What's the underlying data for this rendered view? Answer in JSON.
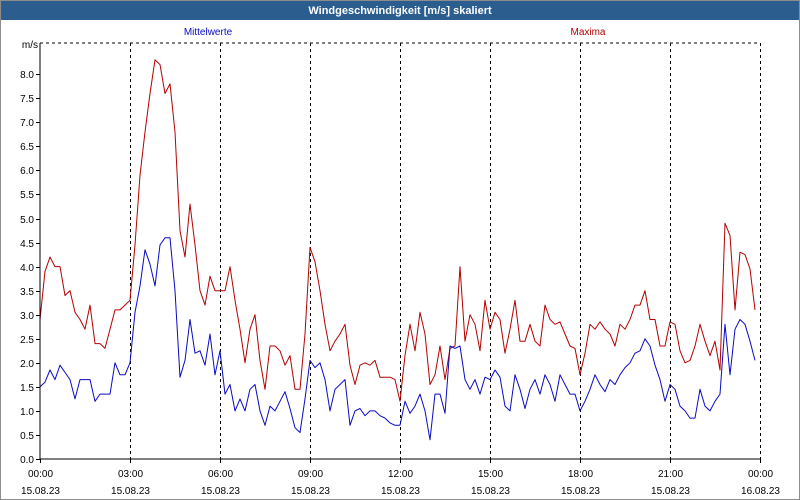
{
  "style": {
    "title_bar_color": "#2b5d8f"
  },
  "chart_data": {
    "type": "line",
    "title": "Windgeschwindigkeit [m/s] skaliert",
    "ylabel": "m/s",
    "ylim": [
      0,
      8.65
    ],
    "yticks": [
      "0.0",
      "0.5",
      "1.0",
      "1.5",
      "2.0",
      "2.5",
      "3.0",
      "3.5",
      "4.0",
      "4.5",
      "5.0",
      "5.5",
      "6.0",
      "6.5",
      "7.0",
      "7.5",
      "8.0"
    ],
    "xticks": [
      {
        "time": "00:00",
        "date": "15.08.23"
      },
      {
        "time": "03:00",
        "date": "15.08.23"
      },
      {
        "time": "06:00",
        "date": "15.08.23"
      },
      {
        "time": "09:00",
        "date": "15.08.23"
      },
      {
        "time": "12:00",
        "date": "15.08.23"
      },
      {
        "time": "15:00",
        "date": "15.08.23"
      },
      {
        "time": "18:00",
        "date": "15.08.23"
      },
      {
        "time": "21:00",
        "date": "15.08.23"
      },
      {
        "time": "00:00",
        "date": "16.08.23"
      }
    ],
    "grid": {
      "x": true,
      "y": false
    },
    "legend": "top",
    "x": [
      "00:00",
      "00:10",
      "00:20",
      "00:30",
      "00:40",
      "00:50",
      "01:00",
      "01:10",
      "01:20",
      "01:30",
      "01:40",
      "01:50",
      "02:00",
      "02:10",
      "02:20",
      "02:30",
      "02:40",
      "02:50",
      "03:00",
      "03:10",
      "03:20",
      "03:30",
      "03:40",
      "03:50",
      "04:00",
      "04:10",
      "04:20",
      "04:30",
      "04:40",
      "04:50",
      "05:00",
      "05:10",
      "05:20",
      "05:30",
      "05:40",
      "05:50",
      "06:00",
      "06:10",
      "06:20",
      "06:30",
      "06:40",
      "06:50",
      "07:00",
      "07:10",
      "07:20",
      "07:30",
      "07:40",
      "07:50",
      "08:00",
      "08:10",
      "08:20",
      "08:30",
      "08:40",
      "08:50",
      "09:00",
      "09:10",
      "09:20",
      "09:30",
      "09:40",
      "09:50",
      "10:00",
      "10:10",
      "10:20",
      "10:30",
      "10:40",
      "10:50",
      "11:00",
      "11:10",
      "11:20",
      "11:30",
      "11:40",
      "11:50",
      "12:00",
      "12:10",
      "12:20",
      "12:30",
      "12:40",
      "12:50",
      "13:00",
      "13:10",
      "13:20",
      "13:30",
      "13:40",
      "13:50",
      "14:00",
      "14:10",
      "14:20",
      "14:30",
      "14:40",
      "14:50",
      "15:00",
      "15:10",
      "15:20",
      "15:30",
      "15:40",
      "15:50",
      "16:00",
      "16:10",
      "16:20",
      "16:30",
      "16:40",
      "16:50",
      "17:00",
      "17:10",
      "17:20",
      "17:30",
      "17:40",
      "17:50",
      "18:00",
      "18:10",
      "18:20",
      "18:30",
      "18:40",
      "18:50",
      "19:00",
      "19:10",
      "19:20",
      "19:30",
      "19:40",
      "19:50",
      "20:00",
      "20:10",
      "20:20",
      "20:30",
      "20:40",
      "20:50",
      "21:00",
      "21:10",
      "21:20",
      "21:30",
      "21:40",
      "21:50",
      "22:00",
      "22:10",
      "22:20",
      "22:30",
      "22:40",
      "22:50",
      "23:00",
      "23:10",
      "23:20",
      "23:30",
      "23:40",
      "23:50"
    ],
    "series": [
      {
        "name": "Mittelwerte",
        "color": "#0a0ac4",
        "values": [
          1.5,
          1.6,
          1.85,
          1.65,
          1.95,
          1.8,
          1.65,
          1.25,
          1.65,
          1.65,
          1.65,
          1.2,
          1.35,
          1.35,
          1.35,
          2.0,
          1.75,
          1.75,
          2.0,
          3.05,
          3.6,
          4.35,
          4.05,
          3.6,
          4.45,
          4.6,
          4.6,
          3.5,
          1.7,
          2.05,
          2.9,
          2.2,
          2.25,
          1.95,
          2.6,
          1.75,
          2.25,
          1.35,
          1.55,
          1.0,
          1.25,
          1.0,
          1.45,
          1.55,
          1.0,
          0.7,
          1.1,
          1.0,
          1.2,
          1.4,
          1.05,
          0.65,
          0.55,
          1.25,
          2.05,
          1.9,
          2.0,
          1.65,
          1.0,
          1.45,
          1.55,
          1.65,
          0.7,
          1.0,
          1.05,
          0.9,
          1.0,
          1.0,
          0.9,
          0.85,
          0.75,
          0.7,
          0.7,
          1.2,
          0.95,
          1.1,
          1.35,
          1.0,
          0.4,
          1.35,
          1.35,
          0.95,
          2.35,
          2.3,
          2.35,
          1.65,
          1.45,
          1.65,
          1.35,
          1.7,
          1.65,
          1.85,
          1.7,
          1.1,
          1.0,
          1.75,
          1.45,
          1.05,
          1.45,
          1.65,
          1.35,
          1.75,
          1.55,
          1.2,
          1.75,
          1.55,
          1.35,
          1.35,
          1.0,
          1.2,
          1.45,
          1.75,
          1.55,
          1.4,
          1.65,
          1.55,
          1.75,
          1.9,
          2.0,
          2.2,
          2.25,
          2.5,
          2.35,
          1.95,
          1.65,
          1.2,
          1.55,
          1.45,
          1.1,
          1.0,
          0.85,
          0.85,
          1.45,
          1.1,
          1.0,
          1.2,
          1.35,
          2.8,
          1.75,
          2.7,
          2.9,
          2.8,
          2.45,
          2.05
        ]
      },
      {
        "name": "Maxima",
        "color": "#b40000",
        "values": [
          2.9,
          3.9,
          4.2,
          4.0,
          4.0,
          3.4,
          3.5,
          3.05,
          2.9,
          2.7,
          3.2,
          2.4,
          2.4,
          2.3,
          2.7,
          3.1,
          3.1,
          3.2,
          3.3,
          4.45,
          5.9,
          6.8,
          7.6,
          8.3,
          8.2,
          7.6,
          7.8,
          6.8,
          4.75,
          4.2,
          5.3,
          4.45,
          3.5,
          3.2,
          3.8,
          3.5,
          3.5,
          3.5,
          4.0,
          3.3,
          2.7,
          2.0,
          2.7,
          3.0,
          2.05,
          1.45,
          2.35,
          2.35,
          2.25,
          1.95,
          2.15,
          1.45,
          1.45,
          2.6,
          4.4,
          4.1,
          3.5,
          2.8,
          2.25,
          2.45,
          2.6,
          2.8,
          1.95,
          1.55,
          1.95,
          2.0,
          1.95,
          2.05,
          1.7,
          1.7,
          1.7,
          1.65,
          1.2,
          2.15,
          2.8,
          2.25,
          3.05,
          2.6,
          1.55,
          1.75,
          2.35,
          1.65,
          2.3,
          2.35,
          4.0,
          2.45,
          3.0,
          2.8,
          2.25,
          3.3,
          2.7,
          3.05,
          2.9,
          2.2,
          2.7,
          3.3,
          2.45,
          2.45,
          2.8,
          2.45,
          2.35,
          3.2,
          2.9,
          2.8,
          2.85,
          2.6,
          2.35,
          2.3,
          1.75,
          2.2,
          2.8,
          2.7,
          2.85,
          2.7,
          2.6,
          2.35,
          2.8,
          2.7,
          2.9,
          3.2,
          3.2,
          3.5,
          2.9,
          2.9,
          2.35,
          2.35,
          2.85,
          2.8,
          2.25,
          2.0,
          2.05,
          2.35,
          2.8,
          2.45,
          2.15,
          2.45,
          1.85,
          4.9,
          4.65,
          3.1,
          4.3,
          4.25,
          3.95,
          3.1
        ]
      }
    ]
  }
}
